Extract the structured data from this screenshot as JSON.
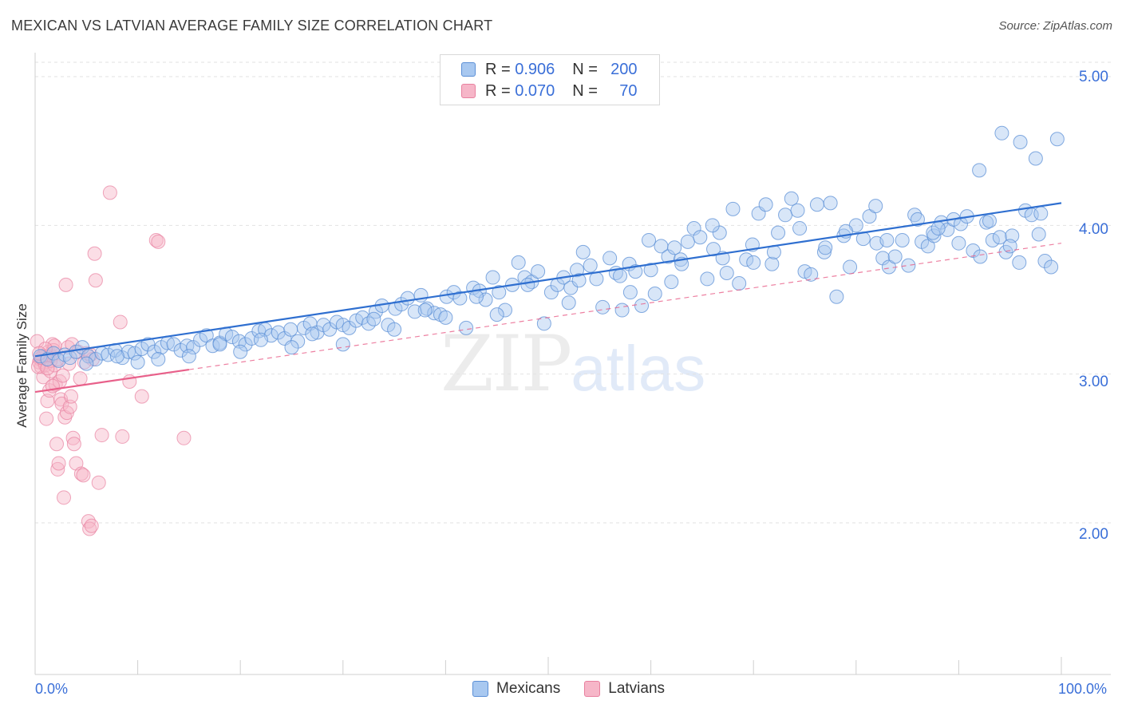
{
  "title": "MEXICAN VS LATVIAN AVERAGE FAMILY SIZE CORRELATION CHART",
  "source": "Source: ZipAtlas.com",
  "watermark": {
    "zip": "ZIP",
    "atlas": "atlas"
  },
  "legend": {
    "rows": [
      {
        "r_label": "R =",
        "r_value": "0.906",
        "n_label": "N =",
        "n_value": "200"
      },
      {
        "r_label": "R =",
        "r_value": "0.070",
        "n_label": "N =",
        "n_value": "70"
      }
    ]
  },
  "colors": {
    "mexicans_fill": "#a8c8f0",
    "mexicans_stroke": "#5b8fd6",
    "mexicans_line": "#2f6fd0",
    "latvians_fill": "#f6b6c8",
    "latvians_stroke": "#e8809f",
    "latvians_line": "#e8608a",
    "axis_text": "#3a6fd8"
  },
  "chart_data": {
    "type": "scatter",
    "title": "MEXICAN VS LATVIAN AVERAGE FAMILY SIZE CORRELATION CHART",
    "xlabel": "",
    "ylabel": "Average Family Size",
    "xlim": [
      0,
      100
    ],
    "ylim": [
      1.2,
      5.1
    ],
    "x_tick_labels": [
      "0.0%",
      "100.0%"
    ],
    "y_ticks": [
      2.0,
      3.0,
      4.0,
      5.0
    ],
    "y_tick_labels": [
      "2.00",
      "3.00",
      "4.00",
      "5.00"
    ],
    "grid": true,
    "legend_position": "top-center",
    "series": [
      {
        "name": "Mexicans",
        "R": 0.906,
        "N": 200,
        "trend": {
          "x": [
            0,
            100
          ],
          "y": [
            3.12,
            4.15
          ]
        },
        "points": [
          [
            0.5,
            3.12
          ],
          [
            1.2,
            3.1
          ],
          [
            1.8,
            3.14
          ],
          [
            2.3,
            3.09
          ],
          [
            2.9,
            3.13
          ],
          [
            3.4,
            3.11
          ],
          [
            4.0,
            3.15
          ],
          [
            4.6,
            3.18
          ],
          [
            5.2,
            3.12
          ],
          [
            5.9,
            3.1
          ],
          [
            6.5,
            3.14
          ],
          [
            7.1,
            3.13
          ],
          [
            7.8,
            3.16
          ],
          [
            8.5,
            3.11
          ],
          [
            9.1,
            3.15
          ],
          [
            9.7,
            3.14
          ],
          [
            10.4,
            3.17
          ],
          [
            11.0,
            3.2
          ],
          [
            11.6,
            3.15
          ],
          [
            12.3,
            3.18
          ],
          [
            12.9,
            3.21
          ],
          [
            13.5,
            3.2
          ],
          [
            14.2,
            3.16
          ],
          [
            14.8,
            3.19
          ],
          [
            15.4,
            3.18
          ],
          [
            16.1,
            3.23
          ],
          [
            16.7,
            3.26
          ],
          [
            17.3,
            3.19
          ],
          [
            18.0,
            3.21
          ],
          [
            18.6,
            3.27
          ],
          [
            19.2,
            3.25
          ],
          [
            19.9,
            3.22
          ],
          [
            20.5,
            3.2
          ],
          [
            21.1,
            3.24
          ],
          [
            21.8,
            3.29
          ],
          [
            22.4,
            3.3
          ],
          [
            23.0,
            3.26
          ],
          [
            23.7,
            3.28
          ],
          [
            24.3,
            3.24
          ],
          [
            24.9,
            3.3
          ],
          [
            25.6,
            3.22
          ],
          [
            26.2,
            3.31
          ],
          [
            26.8,
            3.34
          ],
          [
            27.5,
            3.28
          ],
          [
            28.1,
            3.33
          ],
          [
            28.7,
            3.3
          ],
          [
            29.4,
            3.35
          ],
          [
            30.0,
            3.33
          ],
          [
            30.6,
            3.31
          ],
          [
            31.3,
            3.36
          ],
          [
            31.9,
            3.38
          ],
          [
            32.5,
            3.34
          ],
          [
            33.2,
            3.42
          ],
          [
            33.8,
            3.46
          ],
          [
            34.4,
            3.33
          ],
          [
            35.1,
            3.44
          ],
          [
            35.7,
            3.47
          ],
          [
            36.3,
            3.51
          ],
          [
            37.0,
            3.42
          ],
          [
            37.6,
            3.53
          ],
          [
            38.2,
            3.44
          ],
          [
            38.9,
            3.41
          ],
          [
            39.5,
            3.4
          ],
          [
            40.1,
            3.52
          ],
          [
            40.8,
            3.55
          ],
          [
            41.4,
            3.51
          ],
          [
            42.0,
            3.31
          ],
          [
            42.7,
            3.58
          ],
          [
            43.3,
            3.56
          ],
          [
            43.9,
            3.5
          ],
          [
            44.6,
            3.65
          ],
          [
            45.2,
            3.55
          ],
          [
            45.8,
            3.43
          ],
          [
            46.5,
            3.6
          ],
          [
            47.1,
            3.75
          ],
          [
            47.7,
            3.65
          ],
          [
            48.4,
            3.62
          ],
          [
            49.0,
            3.69
          ],
          [
            49.6,
            3.34
          ],
          [
            50.3,
            3.55
          ],
          [
            50.9,
            3.6
          ],
          [
            51.5,
            3.65
          ],
          [
            52.2,
            3.58
          ],
          [
            52.8,
            3.7
          ],
          [
            53.4,
            3.82
          ],
          [
            54.1,
            3.73
          ],
          [
            54.7,
            3.64
          ],
          [
            55.3,
            3.45
          ],
          [
            56.0,
            3.78
          ],
          [
            56.6,
            3.68
          ],
          [
            57.2,
            3.43
          ],
          [
            57.9,
            3.74
          ],
          [
            58.5,
            3.69
          ],
          [
            59.1,
            3.46
          ],
          [
            59.8,
            3.9
          ],
          [
            60.4,
            3.54
          ],
          [
            61.0,
            3.86
          ],
          [
            61.7,
            3.79
          ],
          [
            62.3,
            3.85
          ],
          [
            62.9,
            3.77
          ],
          [
            63.6,
            3.89
          ],
          [
            64.2,
            3.98
          ],
          [
            64.8,
            3.92
          ],
          [
            65.5,
            3.64
          ],
          [
            66.1,
            3.84
          ],
          [
            66.7,
            3.95
          ],
          [
            67.4,
            3.68
          ],
          [
            68.0,
            4.11
          ],
          [
            68.6,
            3.61
          ],
          [
            69.3,
            3.77
          ],
          [
            69.9,
            3.87
          ],
          [
            70.5,
            4.08
          ],
          [
            71.2,
            4.14
          ],
          [
            71.8,
            3.74
          ],
          [
            72.4,
            3.95
          ],
          [
            73.1,
            4.07
          ],
          [
            73.7,
            4.18
          ],
          [
            74.3,
            4.1
          ],
          [
            75.0,
            3.69
          ],
          [
            75.6,
            3.67
          ],
          [
            76.2,
            4.14
          ],
          [
            76.9,
            3.82
          ],
          [
            77.5,
            4.15
          ],
          [
            78.1,
            3.52
          ],
          [
            78.8,
            3.93
          ],
          [
            79.4,
            3.72
          ],
          [
            80.0,
            4.0
          ],
          [
            80.7,
            3.91
          ],
          [
            81.3,
            4.06
          ],
          [
            81.9,
            4.13
          ],
          [
            82.6,
            3.78
          ],
          [
            83.2,
            3.72
          ],
          [
            83.8,
            3.79
          ],
          [
            84.5,
            3.9
          ],
          [
            85.1,
            3.73
          ],
          [
            85.7,
            4.07
          ],
          [
            86.4,
            3.89
          ],
          [
            87.0,
            3.86
          ],
          [
            87.6,
            3.93
          ],
          [
            88.3,
            4.02
          ],
          [
            88.9,
            3.97
          ],
          [
            89.5,
            4.04
          ],
          [
            90.2,
            4.01
          ],
          [
            90.8,
            4.06
          ],
          [
            91.4,
            3.83
          ],
          [
            92.1,
            3.79
          ],
          [
            92.7,
            4.02
          ],
          [
            93.3,
            3.9
          ],
          [
            94.0,
            3.92
          ],
          [
            94.6,
            3.82
          ],
          [
            95.2,
            3.93
          ],
          [
            95.9,
            3.75
          ],
          [
            96.5,
            4.1
          ],
          [
            97.1,
            4.07
          ],
          [
            97.8,
            3.94
          ],
          [
            98.4,
            3.76
          ],
          [
            99.0,
            3.72
          ],
          [
            99.6,
            4.58
          ],
          [
            94.2,
            4.62
          ],
          [
            96.0,
            4.56
          ],
          [
            97.5,
            4.45
          ],
          [
            92.0,
            4.37
          ],
          [
            62.0,
            3.62
          ],
          [
            58.0,
            3.55
          ],
          [
            70.0,
            3.75
          ],
          [
            60.0,
            3.7
          ],
          [
            82.0,
            3.88
          ],
          [
            87.5,
            3.95
          ],
          [
            45.0,
            3.4
          ],
          [
            40.0,
            3.38
          ],
          [
            35.0,
            3.3
          ],
          [
            30.0,
            3.2
          ],
          [
            25.0,
            3.18
          ],
          [
            20.0,
            3.15
          ],
          [
            15.0,
            3.12
          ],
          [
            10.0,
            3.08
          ],
          [
            5.0,
            3.07
          ],
          [
            8.0,
            3.12
          ],
          [
            12.0,
            3.1
          ],
          [
            18.0,
            3.2
          ],
          [
            22.0,
            3.23
          ],
          [
            27.0,
            3.27
          ],
          [
            33.0,
            3.37
          ],
          [
            38.0,
            3.43
          ],
          [
            43.0,
            3.52
          ],
          [
            48.0,
            3.6
          ],
          [
            53.0,
            3.63
          ],
          [
            57.0,
            3.66
          ],
          [
            63.0,
            3.74
          ],
          [
            67.0,
            3.78
          ],
          [
            72.0,
            3.82
          ],
          [
            77.0,
            3.85
          ],
          [
            83.0,
            3.9
          ],
          [
            88.0,
            3.98
          ],
          [
            93.0,
            4.03
          ],
          [
            98.0,
            4.08
          ],
          [
            66.0,
            4.0
          ],
          [
            74.5,
            3.98
          ],
          [
            79.0,
            3.96
          ],
          [
            86.0,
            4.04
          ],
          [
            90.0,
            3.88
          ],
          [
            95.0,
            3.86
          ],
          [
            52.0,
            3.48
          ]
        ]
      },
      {
        "name": "Latvians",
        "R": 0.07,
        "N": 70,
        "trend": {
          "x": [
            0,
            15
          ],
          "y": [
            2.88,
            3.03
          ]
        },
        "trend_dashed": {
          "x": [
            15,
            100
          ],
          "y": [
            3.03,
            3.88
          ]
        },
        "points": [
          [
            0.2,
            3.22
          ],
          [
            0.4,
            3.08
          ],
          [
            0.5,
            3.1
          ],
          [
            0.6,
            3.05
          ],
          [
            0.7,
            3.12
          ],
          [
            0.8,
            2.98
          ],
          [
            0.9,
            3.08
          ],
          [
            1.0,
            3.06
          ],
          [
            1.1,
            2.7
          ],
          [
            1.2,
            2.82
          ],
          [
            1.3,
            3.15
          ],
          [
            1.4,
            2.89
          ],
          [
            1.5,
            3.02
          ],
          [
            1.6,
            3.12
          ],
          [
            1.7,
            3.2
          ],
          [
            1.8,
            3.16
          ],
          [
            1.9,
            3.06
          ],
          [
            2.0,
            2.93
          ],
          [
            2.1,
            2.53
          ],
          [
            2.2,
            2.36
          ],
          [
            2.3,
            2.4
          ],
          [
            2.5,
            2.83
          ],
          [
            2.6,
            2.8
          ],
          [
            2.8,
            2.17
          ],
          [
            2.9,
            2.71
          ],
          [
            3.0,
            3.6
          ],
          [
            3.1,
            2.74
          ],
          [
            3.2,
            3.18
          ],
          [
            3.4,
            2.78
          ],
          [
            3.6,
            3.2
          ],
          [
            3.7,
            2.57
          ],
          [
            3.8,
            2.53
          ],
          [
            4.0,
            2.4
          ],
          [
            4.2,
            3.15
          ],
          [
            4.4,
            2.97
          ],
          [
            4.5,
            2.33
          ],
          [
            4.7,
            2.32
          ],
          [
            5.0,
            3.14
          ],
          [
            5.2,
            2.01
          ],
          [
            5.3,
            1.96
          ],
          [
            5.5,
            1.98
          ],
          [
            5.6,
            3.1
          ],
          [
            5.8,
            3.81
          ],
          [
            5.9,
            3.63
          ],
          [
            6.2,
            2.27
          ],
          [
            6.5,
            2.59
          ],
          [
            7.3,
            4.22
          ],
          [
            8.3,
            3.35
          ],
          [
            8.5,
            2.58
          ],
          [
            9.2,
            2.95
          ],
          [
            10.4,
            2.85
          ],
          [
            11.8,
            3.9
          ],
          [
            12.0,
            3.89
          ],
          [
            14.5,
            2.57
          ],
          [
            0.3,
            3.05
          ],
          [
            0.9,
            3.12
          ],
          [
            1.5,
            3.09
          ],
          [
            1.9,
            3.19
          ],
          [
            2.4,
            2.95
          ],
          [
            3.3,
            3.07
          ],
          [
            0.6,
            3.11
          ],
          [
            1.2,
            3.04
          ],
          [
            2.7,
            2.99
          ],
          [
            4.8,
            3.08
          ],
          [
            5.4,
            3.13
          ],
          [
            1.0,
            3.17
          ],
          [
            0.4,
            3.14
          ],
          [
            2.2,
            3.1
          ],
          [
            3.5,
            2.85
          ],
          [
            1.7,
            2.92
          ]
        ]
      }
    ]
  },
  "bottom_legend": {
    "items": [
      "Mexicans",
      "Latvians"
    ]
  }
}
